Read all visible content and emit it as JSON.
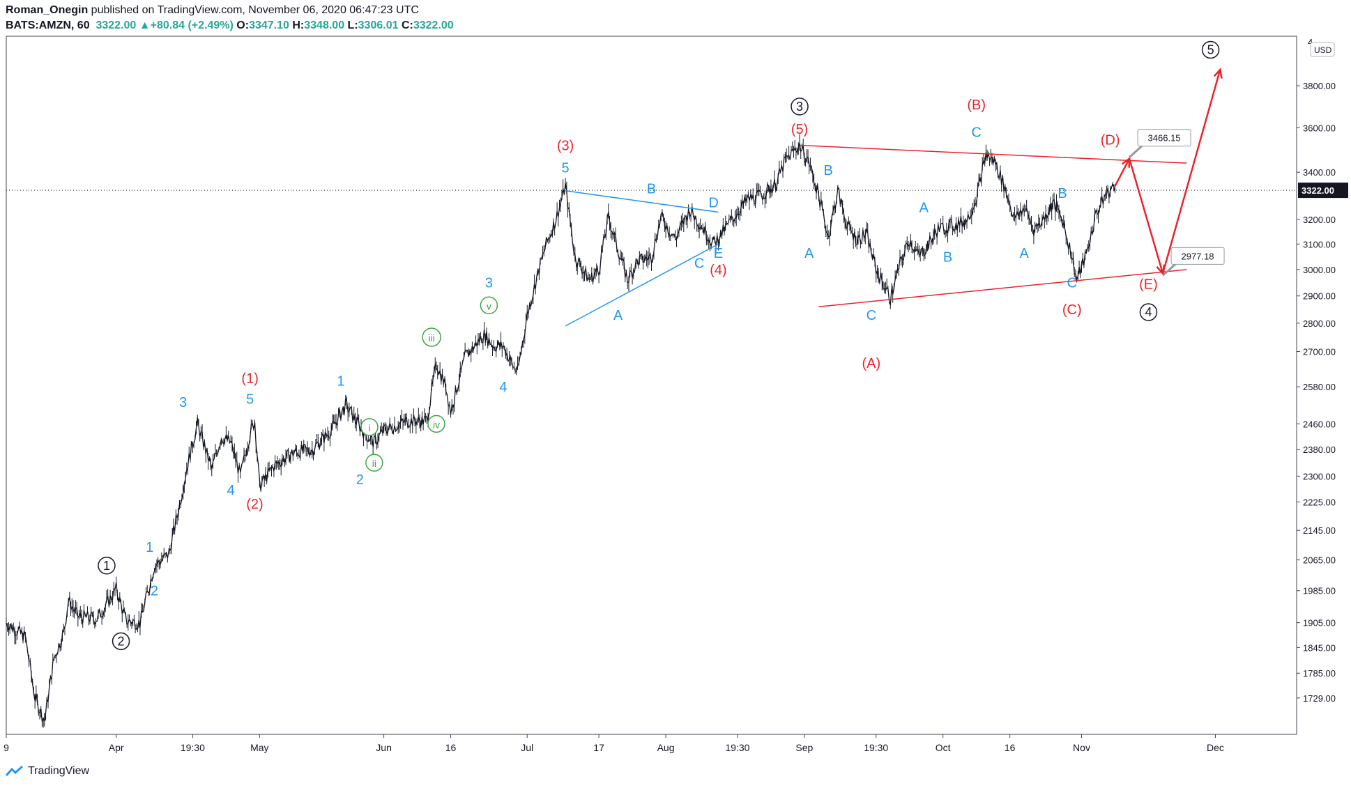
{
  "header": {
    "author": "Roman_Onegin",
    "published_text": " published on TradingView.com, November 06, 2020 06:47:23 UTC",
    "symbol": "BATS:AMZN, 60",
    "last": "3322.00",
    "change": "+80.84 (+2.49%)",
    "o_label": "O:",
    "o": "3347.10",
    "h_label": "H:",
    "h": "3348.00",
    "l_label": "L:",
    "l": "3306.01",
    "c_label": "C:",
    "c": "3322.00"
  },
  "footer": {
    "brand": "TradingView"
  },
  "colors": {
    "red": "#e8232a",
    "blue": "#2196f3",
    "green": "#3aa640",
    "black": "#131722",
    "bars": "#131722"
  },
  "chart_data": {
    "type": "candlestick-ohlc",
    "title": "BATS:AMZN, 60",
    "currency": "USD",
    "last_price_label": "3322.00",
    "yscale": "log",
    "ylim": [
      1650,
      4050
    ],
    "xlim_days": [
      0,
      270
    ],
    "y_ticks": [
      1729,
      1785,
      1845,
      1905,
      1985,
      2065,
      2145,
      2225,
      2300,
      2380,
      2460,
      2580,
      2700,
      2800,
      2900,
      3000,
      3100,
      3200,
      3400,
      3600,
      3800
    ],
    "y_tick_labels": [
      "1729.00",
      "1785.00",
      "1845.00",
      "1905.00",
      "1985.00",
      "2065.00",
      "2145.00",
      "2225.00",
      "2300.00",
      "2380.00",
      "2460.00",
      "2580.00",
      "2700.00",
      "2800.00",
      "2900.00",
      "3000.00",
      "3100.00",
      "3200.00",
      "3400.00",
      "3600.00",
      "3800.00"
    ],
    "y_top_partial_label": "4",
    "x_ticks": [
      {
        "d": 0,
        "label": "9"
      },
      {
        "d": 23,
        "label": "Apr"
      },
      {
        "d": 39,
        "label": "19:30"
      },
      {
        "d": 53,
        "label": "May"
      },
      {
        "d": 79,
        "label": "Jun"
      },
      {
        "d": 93,
        "label": "16"
      },
      {
        "d": 109,
        "label": "Jul"
      },
      {
        "d": 124,
        "label": "17"
      },
      {
        "d": 138,
        "label": "Aug"
      },
      {
        "d": 153,
        "label": "19:30"
      },
      {
        "d": 167,
        "label": "Sep"
      },
      {
        "d": 182,
        "label": "19:30"
      },
      {
        "d": 196,
        "label": "Oct"
      },
      {
        "d": 210,
        "label": "16"
      },
      {
        "d": 225,
        "label": "Nov"
      },
      {
        "d": 253,
        "label": "Dec"
      }
    ],
    "price_path": [
      [
        0,
        1905
      ],
      [
        4,
        1870
      ],
      [
        6,
        1730
      ],
      [
        8,
        1680
      ],
      [
        10,
        1820
      ],
      [
        12,
        1880
      ],
      [
        13,
        1960
      ],
      [
        15,
        1920
      ],
      [
        19,
        1915
      ],
      [
        21,
        1950
      ],
      [
        23,
        1990
      ],
      [
        25,
        1910
      ],
      [
        28,
        1905
      ],
      [
        31,
        2050
      ],
      [
        32,
        2060
      ],
      [
        34,
        2080
      ],
      [
        36,
        2200
      ],
      [
        38,
        2340
      ],
      [
        40,
        2460
      ],
      [
        43,
        2320
      ],
      [
        45,
        2420
      ],
      [
        47,
        2400
      ],
      [
        49,
        2300
      ],
      [
        51,
        2430
      ],
      [
        52,
        2470
      ],
      [
        53,
        2270
      ],
      [
        56,
        2330
      ],
      [
        60,
        2370
      ],
      [
        64,
        2380
      ],
      [
        68,
        2440
      ],
      [
        71,
        2520
      ],
      [
        75,
        2430
      ],
      [
        77,
        2400
      ],
      [
        79,
        2440
      ],
      [
        84,
        2470
      ],
      [
        88,
        2470
      ],
      [
        90,
        2660
      ],
      [
        92,
        2580
      ],
      [
        93,
        2500
      ],
      [
        96,
        2680
      ],
      [
        100,
        2760
      ],
      [
        102,
        2720
      ],
      [
        104,
        2720
      ],
      [
        106,
        2650
      ],
      [
        107,
        2630
      ],
      [
        109,
        2830
      ],
      [
        111,
        2970
      ],
      [
        113,
        3100
      ],
      [
        115,
        3200
      ],
      [
        117,
        3340
      ],
      [
        119,
        3050
      ],
      [
        122,
        2960
      ],
      [
        124,
        3000
      ],
      [
        126,
        3210
      ],
      [
        128,
        3080
      ],
      [
        130,
        2960
      ],
      [
        132,
        3030
      ],
      [
        135,
        3050
      ],
      [
        137,
        3210
      ],
      [
        140,
        3120
      ],
      [
        142,
        3200
      ],
      [
        143,
        3240
      ],
      [
        146,
        3160
      ],
      [
        148,
        3100
      ],
      [
        150,
        3150
      ],
      [
        153,
        3230
      ],
      [
        155,
        3280
      ],
      [
        158,
        3300
      ],
      [
        161,
        3350
      ],
      [
        163,
        3450
      ],
      [
        165,
        3500
      ],
      [
        166,
        3520
      ],
      [
        168,
        3440
      ],
      [
        170,
        3300
      ],
      [
        172,
        3130
      ],
      [
        174,
        3320
      ],
      [
        176,
        3170
      ],
      [
        178,
        3120
      ],
      [
        180,
        3140
      ],
      [
        182,
        3000
      ],
      [
        184,
        2930
      ],
      [
        185,
        2890
      ],
      [
        187,
        3020
      ],
      [
        189,
        3120
      ],
      [
        191,
        3050
      ],
      [
        193,
        3100
      ],
      [
        195,
        3160
      ],
      [
        197,
        3170
      ],
      [
        199,
        3180
      ],
      [
        201,
        3200
      ],
      [
        203,
        3290
      ],
      [
        205,
        3480
      ],
      [
        207,
        3440
      ],
      [
        209,
        3330
      ],
      [
        211,
        3200
      ],
      [
        213,
        3250
      ],
      [
        215,
        3160
      ],
      [
        217,
        3200
      ],
      [
        219,
        3270
      ],
      [
        221,
        3200
      ],
      [
        223,
        3050
      ],
      [
        224,
        2960
      ],
      [
        226,
        3060
      ],
      [
        228,
        3220
      ],
      [
        230,
        3300
      ],
      [
        232,
        3340
      ]
    ],
    "trendlines": [
      {
        "name": "triangle-upper-blue",
        "color": "blue",
        "from": [
          117,
          3320
        ],
        "to": [
          149,
          3230
        ]
      },
      {
        "name": "triangle-lower-blue",
        "color": "blue",
        "from": [
          117,
          2790
        ],
        "to": [
          149,
          3100
        ]
      },
      {
        "name": "triangle-upper-red",
        "color": "red",
        "from": [
          166,
          3520
        ],
        "to": [
          247,
          3440
        ]
      },
      {
        "name": "triangle-lower-red",
        "color": "red",
        "from": [
          170,
          2860
        ],
        "to": [
          247,
          3000
        ]
      }
    ],
    "projection": {
      "color": "red",
      "path": [
        [
          232,
          3340
        ],
        [
          235,
          3460
        ],
        [
          242,
          2985
        ],
        [
          254,
          3880
        ]
      ],
      "callouts": [
        {
          "d": 235,
          "price": 3466.15,
          "label": "3466.15"
        },
        {
          "d": 242,
          "price": 2977.18,
          "label": "2977.18"
        }
      ]
    },
    "wave_labels": [
      {
        "text": "1",
        "color": "black",
        "circled": true,
        "d": 21,
        "price": 2050
      },
      {
        "text": "2",
        "color": "black",
        "circled": true,
        "d": 24,
        "price": 1860
      },
      {
        "text": "3",
        "color": "black",
        "circled": true,
        "d": 166,
        "price": 3700
      },
      {
        "text": "4",
        "color": "black",
        "circled": true,
        "d": 239,
        "price": 2840
      },
      {
        "text": "5",
        "color": "black",
        "circled": true,
        "d": 252,
        "price": 3980
      },
      {
        "text": "1",
        "color": "blue",
        "d": 30,
        "price": 2100
      },
      {
        "text": "2",
        "color": "blue",
        "d": 31,
        "price": 1985
      },
      {
        "text": "3",
        "color": "blue",
        "d": 37,
        "price": 2530
      },
      {
        "text": "4",
        "color": "blue",
        "d": 47,
        "price": 2260
      },
      {
        "text": "5",
        "color": "blue",
        "d": 51,
        "price": 2540
      },
      {
        "text": "(1)",
        "color": "red",
        "d": 51,
        "price": 2610
      },
      {
        "text": "(2)",
        "color": "red",
        "d": 52,
        "price": 2220
      },
      {
        "text": "1",
        "color": "blue",
        "d": 70,
        "price": 2600
      },
      {
        "text": "2",
        "color": "blue",
        "d": 74,
        "price": 2290
      },
      {
        "text": "i",
        "color": "green",
        "circled": true,
        "d": 76,
        "price": 2450
      },
      {
        "text": "ii",
        "color": "green",
        "circled": true,
        "d": 77,
        "price": 2340
      },
      {
        "text": "iii",
        "color": "green",
        "circled": true,
        "d": 89,
        "price": 2750
      },
      {
        "text": "iv",
        "color": "green",
        "circled": true,
        "d": 90,
        "price": 2460
      },
      {
        "text": "v",
        "color": "green",
        "circled": true,
        "d": 101,
        "price": 2865
      },
      {
        "text": "3",
        "color": "blue",
        "d": 101,
        "price": 2950
      },
      {
        "text": "4",
        "color": "blue",
        "d": 104,
        "price": 2580
      },
      {
        "text": "(3)",
        "color": "red",
        "d": 117,
        "price": 3520
      },
      {
        "text": "5",
        "color": "blue",
        "d": 117,
        "price": 3420
      },
      {
        "text": "A",
        "color": "blue",
        "d": 128,
        "price": 2830
      },
      {
        "text": "B",
        "color": "blue",
        "d": 135,
        "price": 3330
      },
      {
        "text": "C",
        "color": "blue",
        "d": 145,
        "price": 3025
      },
      {
        "text": "D",
        "color": "blue",
        "d": 148,
        "price": 3270
      },
      {
        "text": "E",
        "color": "blue",
        "d": 149,
        "price": 3065
      },
      {
        "text": "(4)",
        "color": "red",
        "d": 149,
        "price": 3000
      },
      {
        "text": "(5)",
        "color": "red",
        "d": 166,
        "price": 3595
      },
      {
        "text": "A",
        "color": "blue",
        "d": 168,
        "price": 3065
      },
      {
        "text": "B",
        "color": "blue",
        "d": 172,
        "price": 3410
      },
      {
        "text": "C",
        "color": "blue",
        "d": 181,
        "price": 2830
      },
      {
        "text": "(A)",
        "color": "red",
        "d": 181,
        "price": 2660
      },
      {
        "text": "A",
        "color": "blue",
        "d": 192,
        "price": 3250
      },
      {
        "text": "B",
        "color": "blue",
        "d": 197,
        "price": 3050
      },
      {
        "text": "C",
        "color": "blue",
        "d": 203,
        "price": 3580
      },
      {
        "text": "(B)",
        "color": "red",
        "d": 203,
        "price": 3710
      },
      {
        "text": "A",
        "color": "blue",
        "d": 213,
        "price": 3065
      },
      {
        "text": "B",
        "color": "blue",
        "d": 221,
        "price": 3310
      },
      {
        "text": "C",
        "color": "blue",
        "d": 223,
        "price": 2950
      },
      {
        "text": "(C)",
        "color": "red",
        "d": 223,
        "price": 2850
      },
      {
        "text": "(D)",
        "color": "red",
        "d": 231,
        "price": 3545
      },
      {
        "text": "(E)",
        "color": "red",
        "d": 239,
        "price": 2945
      }
    ]
  }
}
